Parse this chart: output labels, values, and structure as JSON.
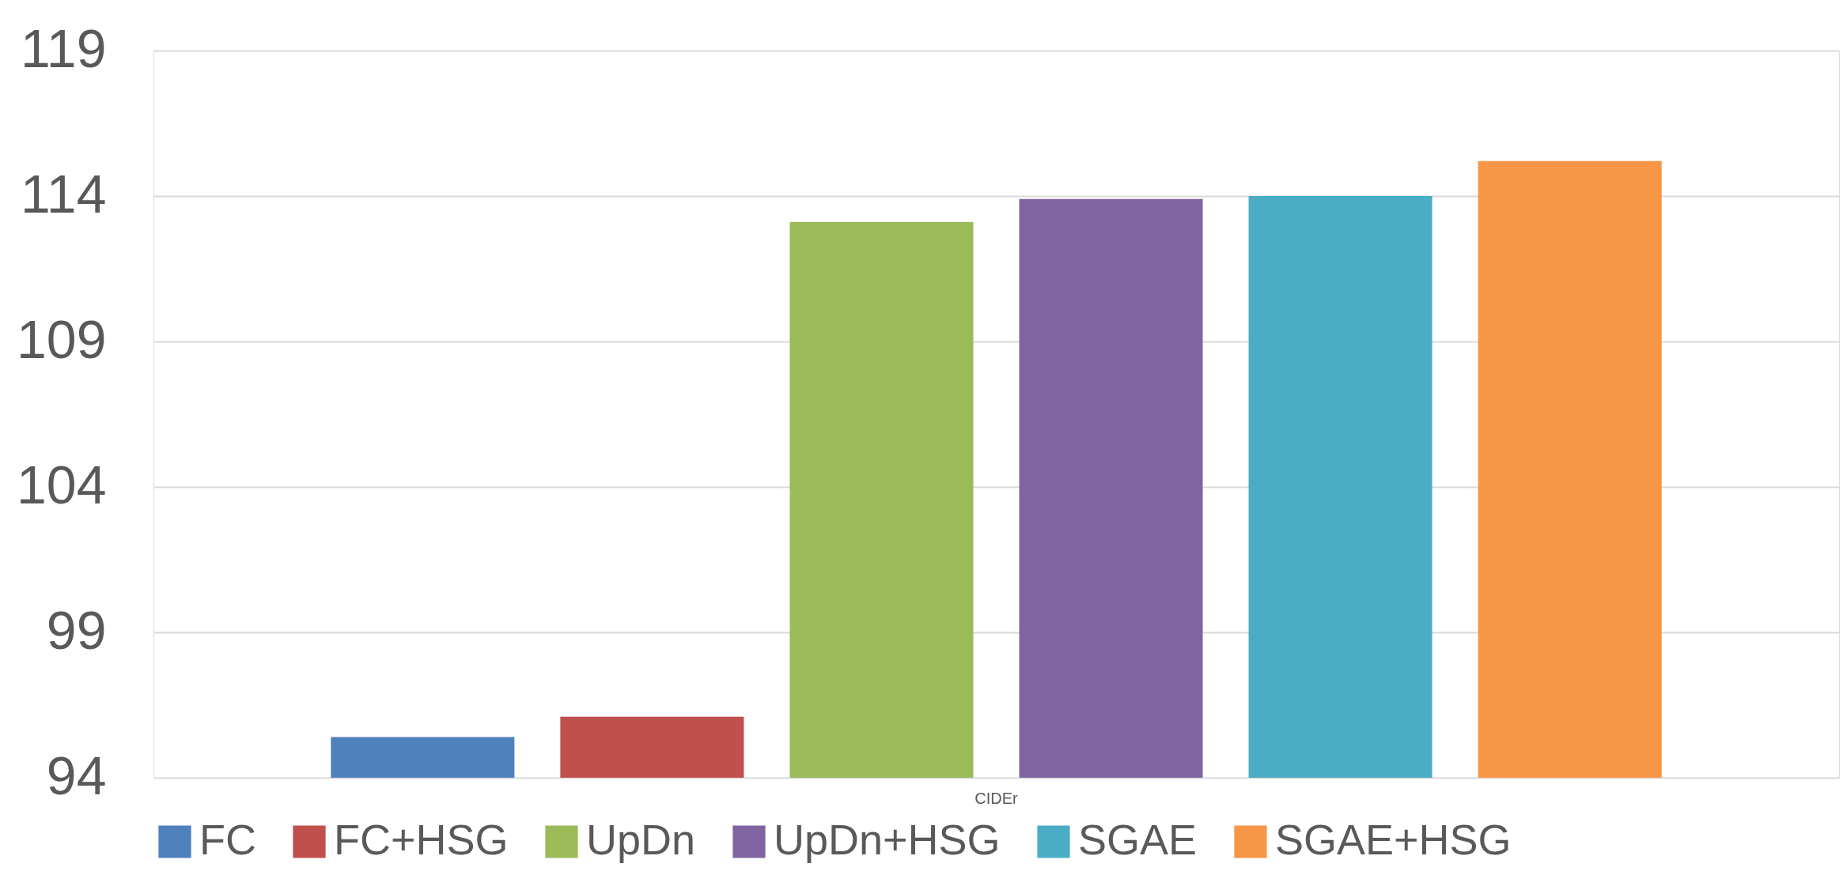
{
  "chart_data": {
    "type": "bar",
    "categories": [
      "CIDEr"
    ],
    "series": [
      {
        "name": "FC",
        "color": "#4f81bd",
        "values": [
          95.4
        ]
      },
      {
        "name": "FC+HSG",
        "color": "#c0504d",
        "values": [
          96.1
        ]
      },
      {
        "name": "UpDn",
        "color": "#9bbb59",
        "values": [
          113.1
        ]
      },
      {
        "name": "UpDn+HSG",
        "color": "#8064a2",
        "values": [
          113.9
        ]
      },
      {
        "name": "SGAE",
        "color": "#4bacc6",
        "values": [
          114.0
        ]
      },
      {
        "name": "SGAE+HSG",
        "color": "#f79646",
        "values": [
          115.2
        ]
      }
    ],
    "ylim": [
      94,
      119
    ],
    "yticks": [
      94,
      99,
      104,
      109,
      114,
      119
    ],
    "grid": "y",
    "legend": "bottom"
  }
}
